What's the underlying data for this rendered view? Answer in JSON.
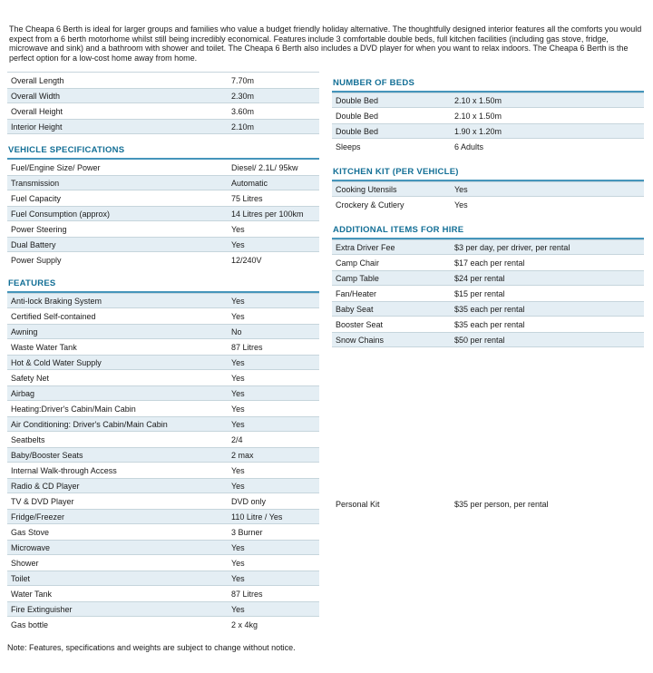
{
  "intro": "The Cheapa 6 Berth is ideal for larger groups and families who value a budget friendly holiday alternative. The thoughtfully designed interior features all the comforts you would expect from a 6 berth motorhome whilst still being incredibly economical. Features include 3 comfortable double beds, full kitchen facilities (including gas stove, fridge, microwave and sink) and a bathroom with shower and toilet. The Cheapa 6 Berth also includes a DVD player for when you want to relax indoors.  The Cheapa 6 Berth is the perfect option for a low-cost home away from home.",
  "colors": {
    "heading": "#136f96",
    "heading_underline": "#4595bb",
    "row_shade": "#e4eef4",
    "row_border": "#c6d5dc",
    "text": "#1a1a1a"
  },
  "left_sections": [
    {
      "title": "",
      "first_shaded": false,
      "rows": [
        {
          "label": "Overall Length",
          "value": "7.70m"
        },
        {
          "label": "Overall Width",
          "value": "2.30m"
        },
        {
          "label": "Overall Height",
          "value": "3.60m"
        },
        {
          "label": "Interior Height",
          "value": "2.10m"
        }
      ]
    },
    {
      "title": "VEHICLE SPECIFICATIONS",
      "first_shaded": false,
      "rows": [
        {
          "label": "Fuel/Engine Size/ Power",
          "value": "Diesel/ 2.1L/ 95kw"
        },
        {
          "label": "Transmission",
          "value": "Automatic"
        },
        {
          "label": "Fuel Capacity",
          "value": "75 Litres"
        },
        {
          "label": "Fuel Consumption (approx)",
          "value": "14 Litres per 100km"
        },
        {
          "label": "Power Steering",
          "value": "Yes"
        },
        {
          "label": "Dual Battery",
          "value": "Yes"
        },
        {
          "label": "Power Supply",
          "value": "12/240V"
        }
      ]
    },
    {
      "title": "FEATURES",
      "first_shaded": true,
      "rows": [
        {
          "label": "Anti-lock Braking System",
          "value": "Yes"
        },
        {
          "label": "Certified Self-contained",
          "value": "Yes"
        },
        {
          "label": "Awning",
          "value": "No"
        },
        {
          "label": "Waste Water Tank",
          "value": "87 Litres"
        },
        {
          "label": "Hot & Cold Water Supply",
          "value": "Yes"
        },
        {
          "label": "Safety Net",
          "value": "Yes"
        },
        {
          "label": "Airbag",
          "value": "Yes"
        },
        {
          "label": "Heating:Driver's Cabin/Main Cabin",
          "value": "Yes"
        },
        {
          "label": "Air Conditioning: Driver's Cabin/Main Cabin",
          "value": "Yes"
        },
        {
          "label": "Seatbelts",
          "value": "2/4"
        },
        {
          "label": "Baby/Booster Seats",
          "value": "2 max"
        },
        {
          "label": "Internal Walk-through Access",
          "value": "Yes"
        },
        {
          "label": "Radio & CD Player",
          "value": "Yes"
        },
        {
          "label": "TV & DVD Player",
          "value": "DVD only"
        },
        {
          "label": "Fridge/Freezer",
          "value": "110 Litre / Yes"
        },
        {
          "label": "Gas Stove",
          "value": "3 Burner"
        },
        {
          "label": "Microwave",
          "value": "Yes"
        },
        {
          "label": "Shower",
          "value": "Yes"
        },
        {
          "label": "Toilet",
          "value": "Yes"
        },
        {
          "label": "Water Tank",
          "value": "87 Litres"
        },
        {
          "label": "Fire Extinguisher",
          "value": "Yes"
        },
        {
          "label": "Gas bottle",
          "value": "2 x 4kg"
        }
      ]
    }
  ],
  "right_sections": [
    {
      "title": "NUMBER OF BEDS",
      "first_shaded": true,
      "rows": [
        {
          "label": "Double Bed",
          "value": "2.10 x 1.50m"
        },
        {
          "label": "Double Bed",
          "value": "2.10 x 1.50m"
        },
        {
          "label": "Double Bed",
          "value": "1.90 x 1.20m"
        },
        {
          "label": "Sleeps",
          "value": "6 Adults"
        }
      ]
    },
    {
      "title": "KITCHEN KIT (PER VEHICLE)",
      "first_shaded": true,
      "rows": [
        {
          "label": "Cooking Utensils",
          "value": "Yes"
        },
        {
          "label": "Crockery & Cutlery",
          "value": "Yes"
        }
      ]
    },
    {
      "title": "ADDITIONAL ITEMS FOR HIRE",
      "first_shaded": true,
      "rows": [
        {
          "label": "Extra Driver Fee",
          "value": "$3 per day, per driver, per rental"
        },
        {
          "label": "Camp Chair",
          "value": "$17 each per rental"
        },
        {
          "label": "Camp Table",
          "value": "$24 per rental"
        },
        {
          "label": "Fan/Heater",
          "value": "$15 per rental"
        },
        {
          "label": "Baby Seat",
          "value": "$35 each per rental"
        },
        {
          "label": "Booster Seat",
          "value": "$35 each per rental"
        },
        {
          "label": "Snow Chains",
          "value": "$50 per rental"
        }
      ]
    }
  ],
  "personal_kit": {
    "label": "Personal Kit",
    "value": "$35 per person, per rental"
  },
  "note": "Note: Features, specifications and weights are subject to change without notice."
}
